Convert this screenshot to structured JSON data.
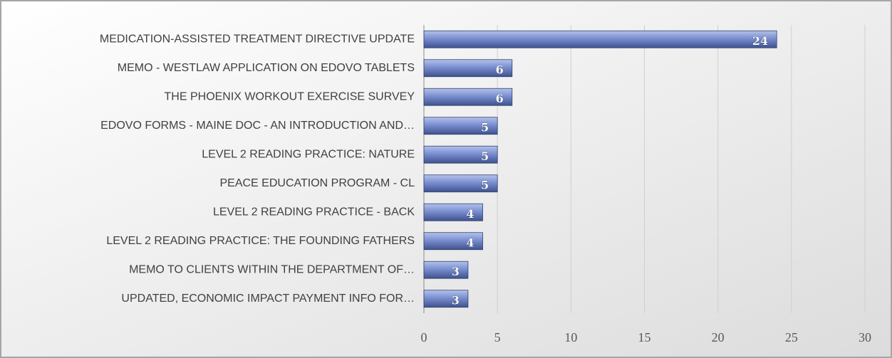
{
  "chart_data": {
    "type": "bar",
    "orientation": "horizontal",
    "categories": [
      "MEDICATION-ASSISTED TREATMENT DIRECTIVE UPDATE",
      "MEMO - WESTLAW APPLICATION ON EDOVO TABLETS",
      "THE PHOENIX WORKOUT EXERCISE SURVEY",
      "EDOVO FORMS - MAINE DOC - AN INTRODUCTION AND…",
      "LEVEL 2 READING PRACTICE: NATURE",
      "PEACE EDUCATION PROGRAM - CL",
      "LEVEL 2 READING PRACTICE - BACK",
      "LEVEL 2 READING PRACTICE: THE FOUNDING FATHERS",
      "MEMO TO CLIENTS WITHIN THE DEPARTMENT OF…",
      "UPDATED, ECONOMIC IMPACT PAYMENT INFO FOR…"
    ],
    "values": [
      24,
      6,
      6,
      5,
      5,
      5,
      4,
      4,
      3,
      3
    ],
    "color": "#7286c6",
    "xlim": [
      0,
      30
    ],
    "xticks": [
      0,
      5,
      10,
      15,
      20,
      25,
      30
    ],
    "grid": true
  }
}
